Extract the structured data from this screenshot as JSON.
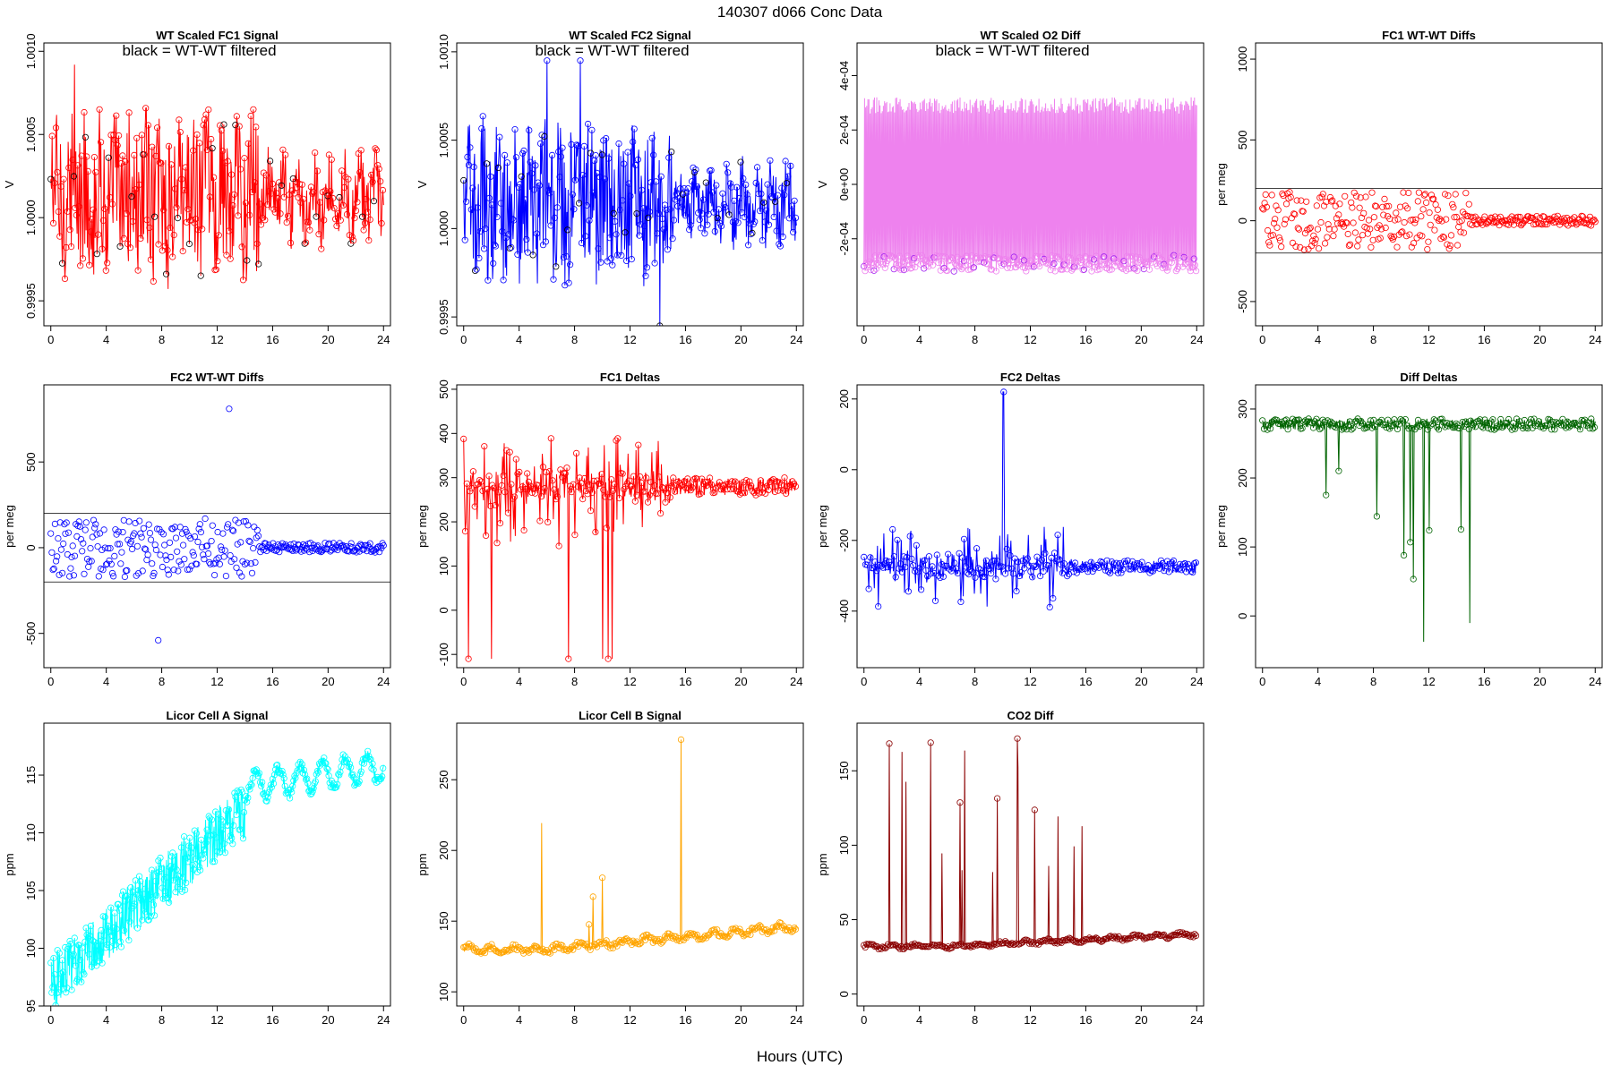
{
  "figure": {
    "title": "140307    d066    Conc Data",
    "xlabel": "Hours (UTC)",
    "note": "black = WT-WT filtered"
  },
  "chart_data": [
    {
      "type": "line",
      "title": "WT Scaled FC1 Signal",
      "ylabel": "V",
      "xlim": [
        -0.5,
        24.5
      ],
      "xticks": [
        0,
        4,
        8,
        12,
        16,
        20,
        24
      ],
      "ylim": [
        0.99935,
        1.00105
      ],
      "yticks": [
        0.9995,
        1.0,
        1.0005,
        1.001
      ],
      "yticklabels": [
        "0.9995",
        "1.0000",
        "1.0005",
        "1.0010"
      ],
      "color": "#ff0000",
      "note": true,
      "hlines": [],
      "mode": "fuzz",
      "base": 1.00012,
      "amp": 0.00011,
      "amp2": 0.00045,
      "spike": 0.0008,
      "n": 520,
      "markers": "#000000"
    },
    {
      "type": "line",
      "title": "WT Scaled FC2 Signal",
      "ylabel": "V",
      "xlim": [
        -0.5,
        24.5
      ],
      "xticks": [
        0,
        4,
        8,
        12,
        16,
        20,
        24
      ],
      "ylim": [
        0.99945,
        1.00105
      ],
      "yticks": [
        0.9995,
        1.0,
        1.0005,
        1.001
      ],
      "yticklabels": [
        "0.9995",
        "1.0000",
        "1.0005",
        "1.0010"
      ],
      "color": "#0000ff",
      "note": true,
      "hlines": [],
      "mode": "fuzz",
      "base": 1.00015,
      "amp": 0.0001,
      "amp2": 0.0004,
      "spike": 0.0008,
      "n": 520,
      "markers": "#000000"
    },
    {
      "type": "line",
      "title": "WT Scaled O2 Diff",
      "ylabel": "V",
      "xlim": [
        -0.5,
        24.5
      ],
      "xticks": [
        0,
        4,
        8,
        12,
        16,
        20,
        24
      ],
      "ylim": [
        -0.00052,
        0.00052
      ],
      "yticks": [
        -0.0002,
        0,
        0.0002,
        0.0004
      ],
      "yticklabels": [
        "-2e-04",
        "0e+00",
        "2e-04",
        "4e-04"
      ],
      "color": "#ee82ee",
      "note": true,
      "hlines": [],
      "mode": "band",
      "base": 0.0,
      "amp": 0.00029,
      "amp2": 3e-05,
      "spike": 0.0001,
      "n": 600,
      "markers": "#a020f0"
    },
    {
      "type": "scatter",
      "title": "FC1 WT-WT Diffs",
      "ylabel": "per meg",
      "xlim": [
        -0.5,
        24.5
      ],
      "xticks": [
        0,
        4,
        8,
        12,
        16,
        20,
        24
      ],
      "ylim": [
        -650,
        1100
      ],
      "yticks": [
        -500,
        0,
        500,
        1000
      ],
      "yticklabels": [
        "-500",
        "0",
        "500",
        "1000"
      ],
      "color": "#ff0000",
      "note": false,
      "hlines": [
        200,
        -200
      ],
      "mode": "scatter",
      "base": 0,
      "amp": 60,
      "amp2": 180,
      "spike": 1050,
      "n": 320,
      "markers": ""
    },
    {
      "type": "scatter",
      "title": "FC2 WT-WT Diffs",
      "ylabel": "per meg",
      "xlim": [
        -0.5,
        24.5
      ],
      "xticks": [
        0,
        4,
        8,
        12,
        16,
        20,
        24
      ],
      "ylim": [
        -700,
        950
      ],
      "yticks": [
        -500,
        0,
        500
      ],
      "yticklabels": [
        "-500",
        "0",
        "500"
      ],
      "color": "#0000ff",
      "note": false,
      "hlines": [
        200,
        -200
      ],
      "mode": "scatter",
      "base": 0,
      "amp": 55,
      "amp2": 170,
      "spike": 900,
      "n": 320,
      "markers": ""
    },
    {
      "type": "line",
      "title": "FC1 Deltas",
      "ylabel": "per meg",
      "xlim": [
        -0.5,
        24.5
      ],
      "xticks": [
        0,
        4,
        8,
        12,
        16,
        20,
        24
      ],
      "ylim": [
        -130,
        510
      ],
      "yticks": [
        -100,
        0,
        100,
        200,
        300,
        400,
        500
      ],
      "yticklabels": [
        "-100",
        "0",
        "100",
        "200",
        "300",
        "400",
        "500"
      ],
      "color": "#ff0000",
      "note": false,
      "hlines": [],
      "mode": "delta",
      "base": 280,
      "amp": 20,
      "amp2": 120,
      "spike": -110,
      "n": 420,
      "markers": ""
    },
    {
      "type": "line",
      "title": "FC2 Deltas",
      "ylabel": "per meg",
      "xlim": [
        -0.5,
        24.5
      ],
      "xticks": [
        0,
        4,
        8,
        12,
        16,
        20,
        24
      ],
      "ylim": [
        -560,
        240
      ],
      "yticks": [
        -400,
        -200,
        0,
        200
      ],
      "yticklabels": [
        "-400",
        "-200",
        "0",
        "200"
      ],
      "color": "#0000ff",
      "note": false,
      "hlines": [],
      "mode": "delta",
      "base": -275,
      "amp": 18,
      "amp2": 110,
      "spike": 220,
      "n": 420,
      "markers": ""
    },
    {
      "type": "line",
      "title": "Diff Deltas",
      "ylabel": "per meg",
      "xlim": [
        -0.5,
        24.5
      ],
      "xticks": [
        0,
        4,
        8,
        12,
        16,
        20,
        24
      ],
      "ylim": [
        -75,
        335
      ],
      "yticks": [
        0,
        100,
        200,
        300
      ],
      "yticklabels": [
        "0",
        "100",
        "200",
        "300"
      ],
      "color": "#006400",
      "note": false,
      "hlines": [],
      "mode": "dips",
      "base": 278,
      "amp": 8,
      "amp2": 20,
      "spike": -60,
      "n": 420,
      "markers": ""
    },
    {
      "type": "line",
      "title": "Licor Cell A Signal",
      "ylabel": "ppm",
      "xlim": [
        -0.5,
        24.5
      ],
      "xticks": [
        0,
        4,
        8,
        12,
        16,
        20,
        24
      ],
      "ylim": [
        95,
        119.5
      ],
      "yticks": [
        95,
        100,
        105,
        110,
        115
      ],
      "yticklabels": [
        "95",
        "100",
        "105",
        "110",
        "115"
      ],
      "color": "#00ffff",
      "note": false,
      "hlines": [],
      "mode": "trend",
      "base": 97,
      "amp": 1.2,
      "amp2": 1.5,
      "spike": 115,
      "n": 700,
      "markers": ""
    },
    {
      "type": "line",
      "title": "Licor Cell B Signal",
      "ylabel": "ppm",
      "xlim": [
        -0.5,
        24.5
      ],
      "xticks": [
        0,
        4,
        8,
        12,
        16,
        20,
        24
      ],
      "ylim": [
        90,
        290
      ],
      "yticks": [
        100,
        150,
        200,
        250
      ],
      "yticklabels": [
        "100",
        "150",
        "200",
        "250"
      ],
      "color": "#ffa500",
      "note": false,
      "hlines": [],
      "mode": "spiky",
      "base": 130,
      "amp": 2,
      "amp2": 6,
      "spike": 285,
      "n": 500,
      "markers": ""
    },
    {
      "type": "line",
      "title": "CO2 Diff",
      "ylabel": "ppm",
      "xlim": [
        -0.5,
        24.5
      ],
      "xticks": [
        0,
        4,
        8,
        12,
        16,
        20,
        24
      ],
      "ylim": [
        -8,
        182
      ],
      "yticks": [
        0,
        50,
        100,
        150
      ],
      "yticklabels": [
        "0",
        "50",
        "100",
        "150"
      ],
      "color": "#8b0000",
      "note": false,
      "hlines": [],
      "mode": "spiky",
      "base": 32,
      "amp": 1,
      "amp2": 3,
      "spike": 178,
      "n": 500,
      "markers": ""
    }
  ]
}
